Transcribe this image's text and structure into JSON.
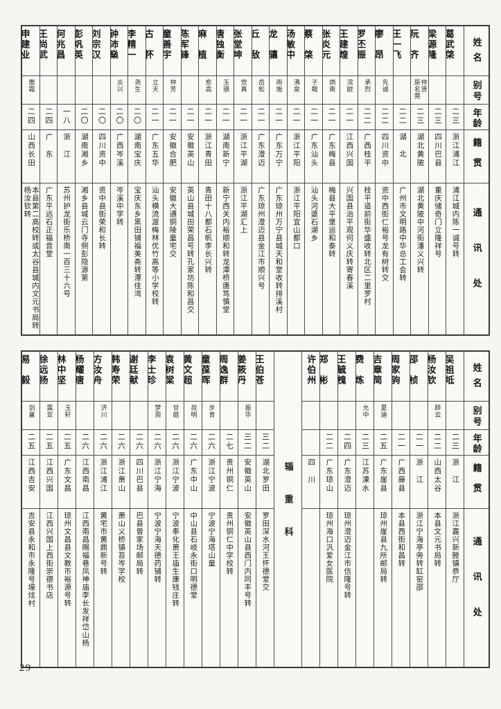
{
  "page": {
    "number": "29"
  },
  "header_labels": {
    "name": "姓名",
    "alias": "别号",
    "age": "年龄",
    "native": "籍贯",
    "address": "通讯处"
  },
  "section_divider": "辎重科",
  "tables": [
    {
      "name": "upper",
      "entries": [
        {
          "type": "person",
          "name": "葛武棨",
          "alias": "",
          "age": "二三",
          "native": "浙江浦江",
          "address": "浦江城内陈一诚号转"
        },
        {
          "type": "person",
          "name": "梁源隆",
          "alias": "",
          "age": "二三",
          "native": "四川巴县",
          "address": "重庆储奇门立隆祥号"
        },
        {
          "type": "person",
          "name": "阮　齐",
          "alias": "仲贤\n原名莞",
          "age": "二三",
          "native": "湖北黄陂",
          "address": "湖北黄陂中河街潘义兴转"
        },
        {
          "type": "person",
          "name": "王一飞",
          "alias": "",
          "age": "二二",
          "native": "湖　北",
          "address": "广州市文明路中华总工会转"
        },
        {
          "type": "person",
          "name": "廖　昂",
          "alias": "先诚",
          "age": "二二",
          "native": "四川资中",
          "address": "资中西街仁裕号龙有树转交"
        },
        {
          "type": "person",
          "name": "罗丕振",
          "alias": "承烈",
          "age": "二二",
          "native": "广西桂平",
          "address": "桂平道前街华盛收转北区二里罗村"
        },
        {
          "type": "person",
          "name": "王建煌",
          "alias": "浣欧",
          "age": "二一",
          "native": "江西兴国",
          "address": "兴国县治平观何义庆转寄春溪"
        },
        {
          "type": "person",
          "name": "张炎元",
          "alias": "炳南",
          "age": "二一",
          "native": "广东梅县",
          "address": "梅县大平堡运和泰转"
        },
        {
          "type": "person",
          "name": "蔡　棨",
          "alias": "子戟",
          "age": "二一",
          "native": "广东汕头",
          "address": "汕头河婆石湖乡"
        },
        {
          "type": "person",
          "name": "汤敏中",
          "alias": "沸泉",
          "age": "二一",
          "native": "浙江平阳",
          "address": "浙江平阳宜山都口"
        },
        {
          "type": "person",
          "name": "龙　骧",
          "alias": "雨施",
          "age": "二一",
          "native": "广东万宁",
          "address": "广东琼州万宁县城天和堂收转排溪村"
        },
        {
          "type": "person",
          "name": "丘　敌",
          "alias": "岳松",
          "age": "二一",
          "native": "广东澄迈",
          "address": "广东琼州澄迈县金江市顺兴号"
        },
        {
          "type": "person",
          "name": "张堂坤",
          "alias": "觉真",
          "age": "二一",
          "native": "浙江平湖",
          "address": "浙江平湖汇上"
        },
        {
          "type": "person",
          "name": "唐独衡",
          "alias": "玉骐",
          "age": "二一",
          "native": "湖南新宁",
          "address": "新宁西关内裕顺和转龙潭桥唐笃慎堂"
        },
        {
          "type": "person",
          "name": "麻　植",
          "alias": "愈高",
          "age": "二一",
          "native": "浙江青田",
          "address": "青田十八都石帆李长兴转"
        },
        {
          "type": "person",
          "name": "陈军锋",
          "alias": "",
          "age": "二一",
          "native": "安徽英山",
          "address": "英山县城田荣昌号转孔家坊陈和昌交"
        },
        {
          "type": "person",
          "name": "童善宇",
          "alias": "仲芳",
          "age": "二一",
          "native": "安徽合肥",
          "address": "安徽大通铜陵童宅交"
        },
        {
          "type": "person",
          "name": "古　怀",
          "alias": "立天",
          "age": "二一",
          "native": "广东五华",
          "address": "汕头横流渡梅林优竹高等小学校转"
        },
        {
          "type": "person",
          "name": "李精一",
          "alias": "尧生",
          "age": "二〇",
          "native": "湖南宝庆",
          "address": "宝庆东乡黑田铺福美斋转潭佳湾"
        },
        {
          "type": "person",
          "name": "钟沛燊",
          "alias": "炎兴",
          "age": "二〇",
          "native": "广西岑溪",
          "address": "岑溪中学转"
        },
        {
          "type": "person",
          "name": "刘宗汉",
          "alias": "",
          "age": "二〇",
          "native": "四川资中",
          "address": "资中县街荣和长转"
        },
        {
          "type": "person",
          "name": "彭巩英",
          "alias": "",
          "age": "二〇",
          "native": "湖南湘乡",
          "address": "湘乡县城云门寺侧彭隐源第"
        },
        {
          "type": "person",
          "name": "何兆昌",
          "alias": "",
          "age": "一八",
          "native": "浙　江",
          "address": "苏州护龙街乐桥南一百三十六号"
        },
        {
          "type": "person",
          "name": "王尚武",
          "alias": "",
          "age": "二四",
          "native": "广　东",
          "address": "广东平远石正福音堂"
        },
        {
          "type": "person",
          "name": "申建业",
          "alias": "傲霜",
          "age": "二四",
          "native": "山西长田",
          "address": "本县第二高校转或太谷县城内文元书局转\n杨汝钦转"
        }
      ]
    },
    {
      "name": "lower",
      "entries": [
        {
          "type": "person",
          "name": "吴祖坻",
          "alias": "",
          "age": "二三",
          "native": "浙　江",
          "address": "浙江嘉兴新塍镇恭厅"
        },
        {
          "type": "person",
          "name": "杨汝钦",
          "alias": "醉云",
          "age": "二二",
          "native": "山西太谷",
          "address": "本县文元书局转"
        },
        {
          "type": "person",
          "name": "邵　桢",
          "alias": "",
          "age": "二一",
          "native": "浙　江",
          "address": "浙江宁海亭旁转缸窑邵"
        },
        {
          "type": "person",
          "name": "周家驹",
          "alias": "",
          "age": "二一",
          "native": "广西藤县",
          "address": "本县西街和昌转"
        },
        {
          "type": "person",
          "name": "吉章简",
          "alias": "夏迪",
          "age": "二五",
          "native": "广东崖县",
          "address": "琼州崖县九所邮局转"
        },
        {
          "type": "person",
          "name": "费　炼",
          "alias": "允中",
          "age": "二三",
          "native": "江苏溧水",
          "address": ""
        },
        {
          "type": "person",
          "name": "王毓槐",
          "alias": "",
          "age": "二四",
          "native": "广东澄迈",
          "address": "琼州澄迈金江市信隆号转"
        },
        {
          "type": "person",
          "name": "郑　彬",
          "alias": "",
          "age": "二二",
          "native": "广东琼山",
          "address": "琼州海口汎爱女医院"
        },
        {
          "type": "person",
          "name": "许伯州",
          "note": "(·)",
          "alias": "",
          "age": "",
          "native": "四　川",
          "address": ""
        },
        {
          "type": "section",
          "label": "辎重科"
        },
        {
          "type": "person",
          "name": "王伯苍",
          "alias": "",
          "age": "三二",
          "native": "湖北罗田",
          "address": "罗田深水河王怀德堂交"
        },
        {
          "type": "person",
          "name": "姜筱丹",
          "alias": "振华",
          "age": "三二",
          "native": "安徽英山",
          "address": "安徽英山县西门内同丰号转"
        },
        {
          "type": "person",
          "name": "周逸群",
          "alias": "",
          "age": "二七",
          "native": "贵州铜仁",
          "address": "贵州铜仁中学校转"
        },
        {
          "type": "person",
          "name": "童葆晖",
          "alias": "步青",
          "age": "二六",
          "native": "浙江宁波",
          "address": "宁波宁海塔山童"
        },
        {
          "type": "person",
          "name": "黄文超",
          "alias": "叔明",
          "age": "二六",
          "native": "广东中山",
          "address": "中山县石岐永街口明德堂"
        },
        {
          "type": "person",
          "name": "袁树棠",
          "alias": "甘庭",
          "age": "二六",
          "native": "浙江宁波",
          "address": "宁波奉化萧王庙生康钱庄转"
        },
        {
          "type": "person",
          "name": "李士珍",
          "alias": "梦周",
          "age": "二六",
          "native": "浙江宁海",
          "address": "宁波宁海天德药铺转"
        },
        {
          "type": "person",
          "name": "谢廷献",
          "alias": "",
          "age": "二六",
          "native": "四川巴县",
          "address": "巴县曾家场邮局转"
        },
        {
          "type": "person",
          "name": "韩寿荣",
          "alias": "",
          "age": "二六",
          "native": "浙江萧山",
          "address": "萧山义桥镇苔岑学校"
        },
        {
          "type": "person",
          "name": "方汝舟",
          "alias": "济川",
          "age": "二六",
          "native": "浙江浦江",
          "address": "黄宅市黄鼎新号转"
        },
        {
          "type": "person",
          "name": "杨耀唐",
          "alias": "",
          "age": "二六",
          "native": "江西南昌",
          "address": "江西南昌赐福巷凤神庙李长发祥岱山杨"
        },
        {
          "type": "person",
          "name": "林中坚",
          "alias": "玉轩",
          "age": "二五",
          "native": "广东文昌",
          "address": "琼州文昌县文教市裕源号转"
        },
        {
          "type": "person",
          "name": "徐远扬",
          "alias": "震亚",
          "age": "二五",
          "native": "江西兴国",
          "address": "江西兴国上西街崇德书店"
        },
        {
          "type": "person",
          "name": "易　毅",
          "alias": "剑盦",
          "age": "二五",
          "native": "江西吉安",
          "address": "吉安县永和市永隆号壕炫村"
        }
      ]
    }
  ]
}
